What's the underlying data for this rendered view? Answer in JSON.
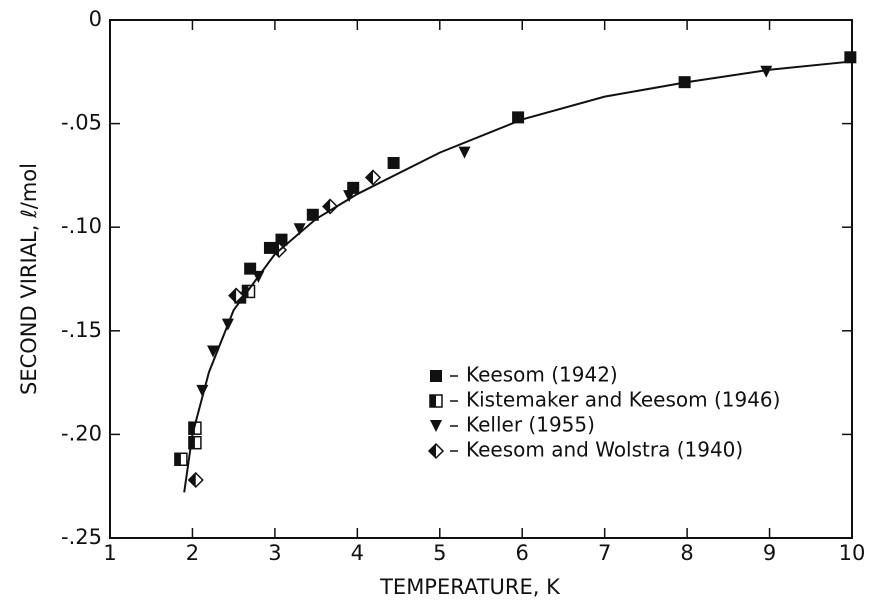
{
  "chart_data": {
    "type": "scatter",
    "xlabel": "TEMPERATURE, K",
    "ylabel": "SECOND VIRIAL, ℓ/mol",
    "xlim": [
      1,
      10
    ],
    "xticks": [
      1,
      2,
      3,
      4,
      5,
      6,
      7,
      8,
      9,
      10
    ],
    "ylim": [
      -0.25,
      0
    ],
    "yticks": [
      {
        "value": -0.25,
        "label": "-.25"
      },
      {
        "value": -0.2,
        "label": "-.20"
      },
      {
        "value": -0.15,
        "label": "-.15"
      },
      {
        "value": -0.1,
        "label": "-.10"
      },
      {
        "value": -0.05,
        "label": "-.05"
      },
      0
    ],
    "legend": "lower right",
    "series": [
      {
        "name": "Keesom (1942)",
        "color": "#111111",
        "marker": "square",
        "x": [
          2.58,
          2.7,
          2.94,
          3.08,
          3.46,
          3.95,
          4.44,
          5.95,
          7.97,
          9.98
        ],
        "values": [
          -0.134,
          -0.12,
          -0.11,
          -0.106,
          -0.094,
          -0.081,
          -0.069,
          -0.047,
          -0.03,
          -0.018
        ]
      },
      {
        "name": "Kistemaker and Keesom (1946)",
        "color": "#111111",
        "marker": "half-square",
        "x": [
          1.86,
          2.03,
          2.03,
          2.68
        ],
        "values": [
          -0.212,
          -0.197,
          -0.204,
          -0.131
        ]
      },
      {
        "name": "Keller (1955)",
        "color": "#111111",
        "marker": "triangle-down",
        "x": [
          2.12,
          2.25,
          2.43,
          2.8,
          3.3,
          3.9,
          5.3,
          8.96
        ],
        "values": [
          -0.179,
          -0.16,
          -0.147,
          -0.124,
          -0.101,
          -0.085,
          -0.064,
          -0.025
        ]
      },
      {
        "name": "Keesom and Wolstra (1940)",
        "color": "#111111",
        "marker": "half-diamond",
        "x": [
          2.04,
          2.53,
          3.05,
          3.67,
          4.19
        ],
        "values": [
          -0.222,
          -0.133,
          -0.111,
          -0.09,
          -0.076
        ]
      },
      {
        "color": "#111111",
        "marker": "line",
        "x": [
          1.9,
          2.0,
          2.2,
          2.5,
          3,
          3.5,
          4,
          5,
          6,
          7,
          8,
          9,
          10
        ],
        "values": [
          -0.228,
          -0.2,
          -0.17,
          -0.14,
          -0.113,
          -0.096,
          -0.084,
          -0.064,
          -0.048,
          -0.037,
          -0.03,
          -0.024,
          -0.02
        ]
      }
    ]
  }
}
